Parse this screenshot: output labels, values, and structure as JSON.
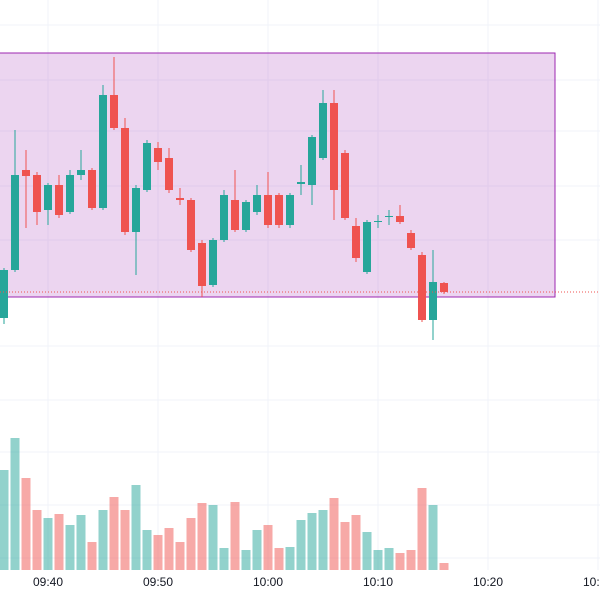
{
  "chart_data": {
    "type": "candlestick",
    "up_color": "#26a69a",
    "down_color": "#ef5350",
    "ylim": [
      60,
      100
    ],
    "volume_ylim": [
      0,
      150
    ],
    "grid": true,
    "candles": {
      "open": [
        68.2,
        73.0,
        83.0,
        82.5,
        79.0,
        81.5,
        78.8,
        82.5,
        83.0,
        79.2,
        90.5,
        87.2,
        76.8,
        81.0,
        85.2,
        84.2,
        80.2,
        80.0,
        75.7,
        71.5,
        76.0,
        80.0,
        77.0,
        78.8,
        80.5,
        80.5,
        77.5,
        81.6,
        81.5,
        84.2,
        89.7,
        84.7,
        77.4,
        72.8,
        77.8,
        78.3,
        78.4,
        76.7,
        74.5,
        68.0,
        71.7
      ],
      "high": [
        73.2,
        87.0,
        85.0,
        82.8,
        81.7,
        82.5,
        83.0,
        85.0,
        83.2,
        91.5,
        94.3,
        88.2,
        81.5,
        86.0,
        85.8,
        85.2,
        81.2,
        80.2,
        76.0,
        76.2,
        81.0,
        83.0,
        80.0,
        81.5,
        82.8,
        80.7,
        80.7,
        83.5,
        86.5,
        91.0,
        91.0,
        85.0,
        78.2,
        78.0,
        78.5,
        79.0,
        79.5,
        77.0,
        74.8,
        75.0,
        71.8
      ],
      "low": [
        67.6,
        72.8,
        77.2,
        77.5,
        77.5,
        78.2,
        78.6,
        82.0,
        79.0,
        79.0,
        87.0,
        76.5,
        72.5,
        80.8,
        83.0,
        80.7,
        79.5,
        74.8,
        70.3,
        71.3,
        75.8,
        76.8,
        76.8,
        78.5,
        77.2,
        77.2,
        77.2,
        80.5,
        79.5,
        84.0,
        78.0,
        78.0,
        73.8,
        72.6,
        77.2,
        77.5,
        77.6,
        75.0,
        67.8,
        66.0,
        70.6
      ],
      "close": [
        73.0,
        82.5,
        82.4,
        78.8,
        81.5,
        78.5,
        82.5,
        83.0,
        79.2,
        90.5,
        87.2,
        76.8,
        81.2,
        85.7,
        83.8,
        81.0,
        80.0,
        75.0,
        71.4,
        76.0,
        80.5,
        77.0,
        79.8,
        80.5,
        77.5,
        77.5,
        80.5,
        81.8,
        86.3,
        89.7,
        81.0,
        78.2,
        74.2,
        77.8,
        77.9,
        78.4,
        77.8,
        75.2,
        68.0,
        71.8,
        70.8
      ]
    },
    "volume": [
      100,
      132,
      92,
      60,
      52,
      56,
      45,
      55,
      28,
      60,
      73,
      60,
      85,
      40,
      35,
      42,
      28,
      52,
      67,
      65,
      22,
      68,
      20,
      40,
      45,
      22,
      23,
      50,
      57,
      60,
      72,
      48,
      55,
      38,
      20,
      22,
      17,
      20,
      82,
      65,
      7
    ],
    "time_labels": [
      "09:40",
      "09:50",
      "10:00",
      "10:10",
      "10:20",
      "10:"
    ]
  }
}
